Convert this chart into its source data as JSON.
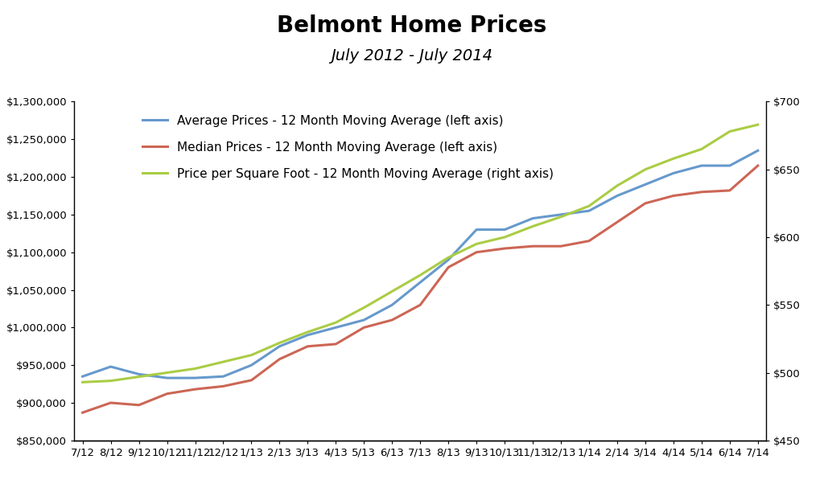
{
  "title": "Belmont Home Prices",
  "subtitle": "July 2012 - July 2014",
  "x_labels": [
    "7/12",
    "8/12",
    "9/12",
    "10/12",
    "11/12",
    "12/12",
    "1/13",
    "2/13",
    "3/13",
    "4/13",
    "5/13",
    "6/13",
    "7/13",
    "8/13",
    "9/13",
    "10/13",
    "11/13",
    "12/13",
    "1/14",
    "2/14",
    "3/14",
    "4/14",
    "5/14",
    "6/14",
    "7/14"
  ],
  "avg_prices": [
    935000,
    948000,
    938000,
    933000,
    933000,
    935000,
    950000,
    975000,
    990000,
    1000000,
    1010000,
    1030000,
    1060000,
    1090000,
    1130000,
    1130000,
    1145000,
    1150000,
    1155000,
    1175000,
    1190000,
    1205000,
    1215000,
    1215000,
    1235000
  ],
  "median_prices": [
    887000,
    900000,
    897000,
    912000,
    918000,
    922000,
    930000,
    958000,
    975000,
    978000,
    1000000,
    1010000,
    1030000,
    1080000,
    1100000,
    1105000,
    1108000,
    1108000,
    1115000,
    1140000,
    1165000,
    1175000,
    1180000,
    1182000,
    1215000
  ],
  "price_sqft": [
    493,
    494,
    497,
    500,
    503,
    508,
    513,
    522,
    530,
    537,
    548,
    560,
    572,
    585,
    595,
    600,
    608,
    615,
    623,
    638,
    650,
    658,
    665,
    678,
    683
  ],
  "avg_color": "#6699CC",
  "median_color": "#CC6655",
  "sqft_color": "#AACC44",
  "left_ylim": [
    850000,
    1300000
  ],
  "right_ylim": [
    450,
    700
  ],
  "left_yticks": [
    850000,
    900000,
    950000,
    1000000,
    1050000,
    1100000,
    1150000,
    1200000,
    1250000,
    1300000
  ],
  "right_yticks": [
    450,
    500,
    550,
    600,
    650,
    700
  ],
  "legend_avg": "Average Prices - 12 Month Moving Average (left axis)",
  "legend_median": "Median Prices - 12 Month Moving Average (left axis)",
  "legend_sqft": "Price per Square Foot - 12 Month Moving Average (right axis)",
  "bg_color": "#FFFFFF",
  "line_width": 2.2,
  "title_fontsize": 20,
  "subtitle_fontsize": 14,
  "legend_fontsize": 11,
  "tick_fontsize": 9.5
}
